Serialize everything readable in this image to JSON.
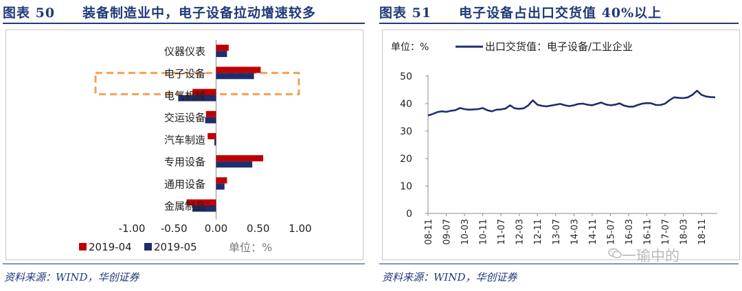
{
  "left_panel": {
    "title": "图表 50　　装备制造业中，电子设备拉动增速较多",
    "source": "资料来源：WIND，华创证券"
  },
  "right_panel": {
    "title": "图表 51　　电子设备占出口交货值 40%以上",
    "source": "资料来源：WIND，华创证券"
  },
  "watermark": {
    "text": "一瑜中的",
    "icon": "wechat-icon"
  },
  "colors": {
    "red": "#c00000",
    "navy": "#1f2d6e",
    "highlight": "#f0a050",
    "title": "#1e3a78"
  },
  "chart_data": [
    {
      "type": "bar",
      "orientation": "horizontal",
      "categories": [
        "仪器仪表",
        "电子设备",
        "电气机械",
        "交运设备",
        "汽车制造",
        "专用设备",
        "通用设备",
        "金属制品"
      ],
      "series": [
        {
          "name": "2019-04",
          "values": [
            0.15,
            0.53,
            -0.28,
            -0.12,
            -0.1,
            0.56,
            0.13,
            -0.35
          ],
          "color": "#c00000"
        },
        {
          "name": "2019-05",
          "values": [
            0.13,
            0.45,
            -0.45,
            -0.13,
            -0.02,
            0.43,
            0.1,
            -0.28
          ],
          "color": "#1f2d6e"
        }
      ],
      "xlim": [
        -1.0,
        1.0
      ],
      "xticks": [
        "-1.00",
        "-0.50",
        "0.00",
        "0.50",
        "1.00"
      ],
      "unit_label": "单位：%",
      "highlight_category": "电子设备",
      "legend": "bottom-left"
    },
    {
      "type": "line",
      "unit_label": "单位：%",
      "series": [
        {
          "name": "出口交货值：电子设备/工业企业",
          "color": "#1f2d6e",
          "x": [
            "08-11",
            "09-01",
            "09-03",
            "09-05",
            "09-07",
            "09-09",
            "09-11",
            "10-01",
            "10-03",
            "10-05",
            "10-07",
            "10-09",
            "10-11",
            "11-01",
            "11-03",
            "11-05",
            "11-07",
            "11-09",
            "11-11",
            "12-01",
            "12-03",
            "12-05",
            "12-07",
            "12-09",
            "12-11",
            "13-01",
            "13-03",
            "13-05",
            "13-07",
            "13-09",
            "13-11",
            "14-01",
            "14-03",
            "14-05",
            "14-07",
            "14-09",
            "14-11",
            "15-01",
            "15-03",
            "15-05",
            "15-07",
            "15-09",
            "15-11",
            "16-01",
            "16-03",
            "16-05",
            "16-07",
            "16-09",
            "16-11",
            "17-01",
            "17-03",
            "17-05",
            "17-07",
            "17-09",
            "17-11",
            "18-01",
            "18-03",
            "18-05",
            "18-07",
            "18-09",
            "18-11",
            "19-01",
            "19-03",
            "19-05"
          ],
          "values": [
            35.7,
            36.2,
            36.9,
            37.2,
            37.0,
            37.4,
            37.6,
            38.4,
            38.0,
            37.8,
            37.9,
            38.0,
            38.4,
            37.6,
            37.2,
            37.8,
            37.9,
            38.2,
            39.4,
            38.3,
            38.1,
            38.3,
            39.4,
            41.2,
            39.6,
            39.2,
            39.0,
            39.3,
            39.6,
            39.9,
            39.4,
            39.1,
            39.4,
            39.9,
            40.0,
            39.6,
            39.4,
            39.9,
            40.4,
            39.7,
            39.4,
            39.6,
            40.1,
            39.3,
            38.9,
            38.9,
            39.5,
            40.0,
            40.2,
            40.1,
            39.5,
            39.5,
            40.0,
            41.3,
            42.3,
            42.1,
            42.0,
            42.3,
            43.2,
            44.7,
            43.2,
            42.6,
            42.4,
            42.3
          ]
        }
      ],
      "ylim": [
        0,
        50
      ],
      "yticks": [
        0,
        10,
        20,
        30,
        40,
        50
      ],
      "xticks": [
        "08-11",
        "09-07",
        "10-03",
        "10-11",
        "11-07",
        "12-03",
        "12-11",
        "13-07",
        "14-03",
        "14-11",
        "15-07",
        "16-03",
        "16-11",
        "17-07",
        "18-03",
        "18-11"
      ],
      "legend": "top"
    }
  ]
}
